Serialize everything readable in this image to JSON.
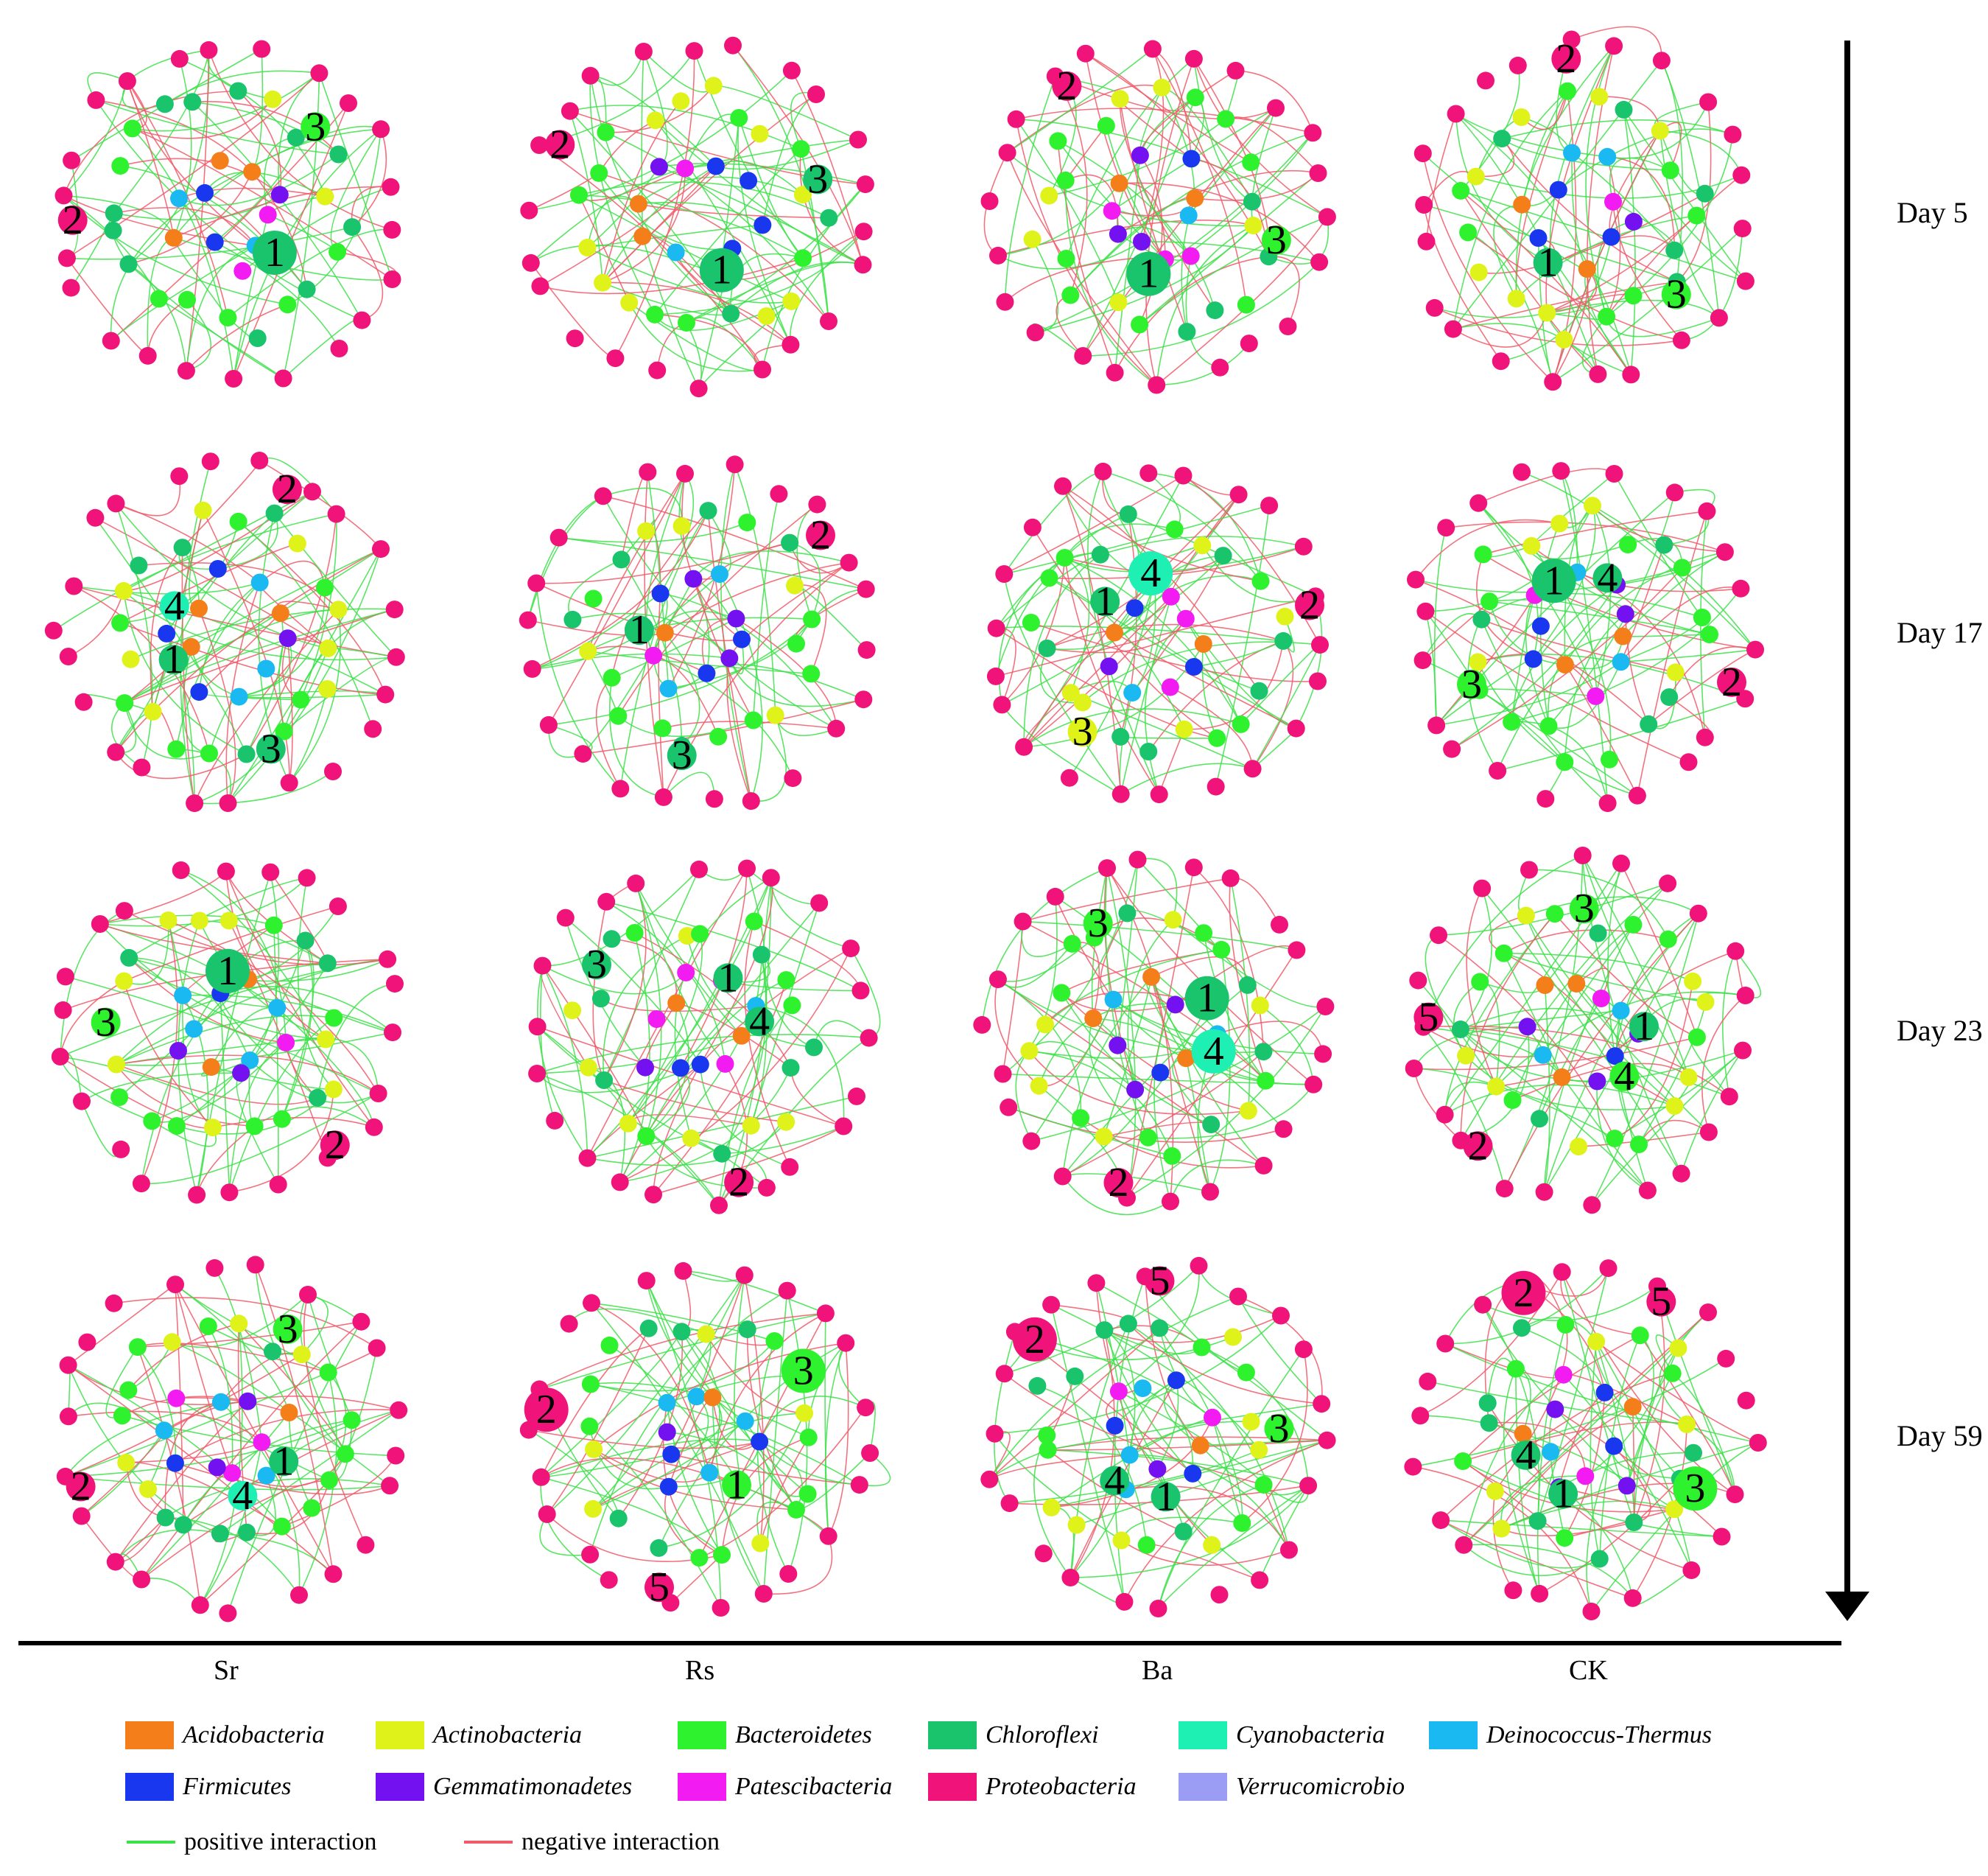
{
  "colors": {
    "Acidobacteria": "#f47f1a",
    "Actinobacteria": "#dff21a",
    "Bacteroidetes": "#2ef22e",
    "Chloroflexi": "#19c46c",
    "Cyanobacteria": "#1ef0b4",
    "Deinococcus-Thermus": "#1ab9f2",
    "Firmicutes": "#1a37f0",
    "Gemmatimonadetes": "#7411f0",
    "Patescibacteria": "#f21cf2",
    "Proteobacteria": "#f0147a",
    "Verrucomicrobio": "#9b9cf4",
    "positive": "#3ee04a",
    "negative": "#f05a6a"
  },
  "days": [
    "Day 5",
    "Day 17",
    "Day 23",
    "Day 59"
  ],
  "treatments": [
    "Sr",
    "Rs",
    "Ba",
    "CK"
  ],
  "legend": {
    "phyla": [
      {
        "label": "Acidobacteria",
        "color_key": "Acidobacteria"
      },
      {
        "label": "Actinobacteria",
        "color_key": "Actinobacteria"
      },
      {
        "label": "Bacteroidetes",
        "color_key": "Bacteroidetes"
      },
      {
        "label": "Chloroflexi",
        "color_key": "Chloroflexi"
      },
      {
        "label": "Cyanobacteria",
        "color_key": "Cyanobacteria"
      },
      {
        "label": "Deinococcus-Thermus",
        "color_key": "Deinococcus-Thermus"
      },
      {
        "label": "Firmicutes",
        "color_key": "Firmicutes"
      },
      {
        "label": "Gemmatimonadetes",
        "color_key": "Gemmatimonadetes"
      },
      {
        "label": "Patescibacteria",
        "color_key": "Patescibacteria"
      },
      {
        "label": "Proteobacteria",
        "color_key": "Proteobacteria"
      },
      {
        "label": "Verrucomicrobio",
        "color_key": "Verrucomicrobio"
      }
    ],
    "positive_label": "positive interaction",
    "negative_label": "negative interaction"
  },
  "networks": [
    {
      "day": "Day 5",
      "treatment": "Sr",
      "hubs": [
        {
          "label": "1",
          "phylum": "Chloroflexi",
          "big": true
        },
        {
          "label": "2",
          "phylum": "Proteobacteria",
          "big": false
        },
        {
          "label": "3",
          "phylum": "Bacteroidetes",
          "big": false
        }
      ]
    },
    {
      "day": "Day 5",
      "treatment": "Rs",
      "hubs": [
        {
          "label": "1",
          "phylum": "Chloroflexi",
          "big": true
        },
        {
          "label": "2",
          "phylum": "Proteobacteria",
          "big": false
        },
        {
          "label": "3",
          "phylum": "Chloroflexi",
          "big": false
        }
      ]
    },
    {
      "day": "Day 5",
      "treatment": "Ba",
      "hubs": [
        {
          "label": "1",
          "phylum": "Chloroflexi",
          "big": true
        },
        {
          "label": "2",
          "phylum": "Proteobacteria",
          "big": false
        },
        {
          "label": "3",
          "phylum": "Bacteroidetes",
          "big": false
        }
      ]
    },
    {
      "day": "Day 5",
      "treatment": "CK",
      "hubs": [
        {
          "label": "1",
          "phylum": "Chloroflexi",
          "big": false
        },
        {
          "label": "2",
          "phylum": "Proteobacteria",
          "big": false
        },
        {
          "label": "3",
          "phylum": "Bacteroidetes",
          "big": false
        }
      ]
    },
    {
      "day": "Day 17",
      "treatment": "Sr",
      "hubs": [
        {
          "label": "1",
          "phylum": "Chloroflexi",
          "big": false
        },
        {
          "label": "2",
          "phylum": "Proteobacteria",
          "big": false
        },
        {
          "label": "3",
          "phylum": "Chloroflexi",
          "big": false
        },
        {
          "label": "4",
          "phylum": "Cyanobacteria",
          "big": false
        }
      ]
    },
    {
      "day": "Day 17",
      "treatment": "Rs",
      "hubs": [
        {
          "label": "1",
          "phylum": "Chloroflexi",
          "big": false
        },
        {
          "label": "2",
          "phylum": "Proteobacteria",
          "big": false
        },
        {
          "label": "3",
          "phylum": "Chloroflexi",
          "big": false
        }
      ]
    },
    {
      "day": "Day 17",
      "treatment": "Ba",
      "hubs": [
        {
          "label": "1",
          "phylum": "Chloroflexi",
          "big": false
        },
        {
          "label": "2",
          "phylum": "Proteobacteria",
          "big": false
        },
        {
          "label": "3",
          "phylum": "Actinobacteria",
          "big": false
        },
        {
          "label": "4",
          "phylum": "Cyanobacteria",
          "big": true
        }
      ]
    },
    {
      "day": "Day 17",
      "treatment": "CK",
      "hubs": [
        {
          "label": "1",
          "phylum": "Chloroflexi",
          "big": true
        },
        {
          "label": "2",
          "phylum": "Proteobacteria",
          "big": false
        },
        {
          "label": "3",
          "phylum": "Bacteroidetes",
          "big": false
        },
        {
          "label": "4",
          "phylum": "Chloroflexi",
          "big": false
        }
      ]
    },
    {
      "day": "Day 23",
      "treatment": "Sr",
      "hubs": [
        {
          "label": "1",
          "phylum": "Chloroflexi",
          "big": true
        },
        {
          "label": "2",
          "phylum": "Proteobacteria",
          "big": false
        },
        {
          "label": "3",
          "phylum": "Bacteroidetes",
          "big": false
        }
      ]
    },
    {
      "day": "Day 23",
      "treatment": "Rs",
      "hubs": [
        {
          "label": "1",
          "phylum": "Chloroflexi",
          "big": false
        },
        {
          "label": "2",
          "phylum": "Proteobacteria",
          "big": false
        },
        {
          "label": "3",
          "phylum": "Chloroflexi",
          "big": false
        },
        {
          "label": "4",
          "phylum": "Chloroflexi",
          "big": false
        }
      ]
    },
    {
      "day": "Day 23",
      "treatment": "Ba",
      "hubs": [
        {
          "label": "1",
          "phylum": "Chloroflexi",
          "big": true
        },
        {
          "label": "2",
          "phylum": "Proteobacteria",
          "big": false
        },
        {
          "label": "3",
          "phylum": "Bacteroidetes",
          "big": false
        },
        {
          "label": "4",
          "phylum": "Cyanobacteria",
          "big": true
        }
      ]
    },
    {
      "day": "Day 23",
      "treatment": "CK",
      "hubs": [
        {
          "label": "1",
          "phylum": "Chloroflexi",
          "big": false
        },
        {
          "label": "2",
          "phylum": "Proteobacteria",
          "big": false
        },
        {
          "label": "3",
          "phylum": "Bacteroidetes",
          "big": false
        },
        {
          "label": "4",
          "phylum": "Bacteroidetes",
          "big": false
        },
        {
          "label": "5",
          "phylum": "Proteobacteria",
          "big": false
        }
      ]
    },
    {
      "day": "Day 59",
      "treatment": "Sr",
      "hubs": [
        {
          "label": "1",
          "phylum": "Chloroflexi",
          "big": false
        },
        {
          "label": "2",
          "phylum": "Proteobacteria",
          "big": false
        },
        {
          "label": "3",
          "phylum": "Bacteroidetes",
          "big": false
        },
        {
          "label": "4",
          "phylum": "Cyanobacteria",
          "big": false
        }
      ]
    },
    {
      "day": "Day 59",
      "treatment": "Rs",
      "hubs": [
        {
          "label": "1",
          "phylum": "Bacteroidetes",
          "big": false
        },
        {
          "label": "2",
          "phylum": "Proteobacteria",
          "big": true
        },
        {
          "label": "3",
          "phylum": "Bacteroidetes",
          "big": true
        },
        {
          "label": "5",
          "phylum": "Proteobacteria",
          "big": false
        }
      ]
    },
    {
      "day": "Day 59",
      "treatment": "Ba",
      "hubs": [
        {
          "label": "1",
          "phylum": "Chloroflexi",
          "big": false
        },
        {
          "label": "2",
          "phylum": "Proteobacteria",
          "big": true
        },
        {
          "label": "3",
          "phylum": "Bacteroidetes",
          "big": false
        },
        {
          "label": "4",
          "phylum": "Chloroflexi",
          "big": false
        },
        {
          "label": "5",
          "phylum": "Proteobacteria",
          "big": false
        }
      ]
    },
    {
      "day": "Day 59",
      "treatment": "CK",
      "hubs": [
        {
          "label": "1",
          "phylum": "Chloroflexi",
          "big": false
        },
        {
          "label": "2",
          "phylum": "Proteobacteria",
          "big": true
        },
        {
          "label": "3",
          "phylum": "Bacteroidetes",
          "big": true
        },
        {
          "label": "4",
          "phylum": "Chloroflexi",
          "big": false
        },
        {
          "label": "5",
          "phylum": "Proteobacteria",
          "big": false
        }
      ]
    }
  ]
}
